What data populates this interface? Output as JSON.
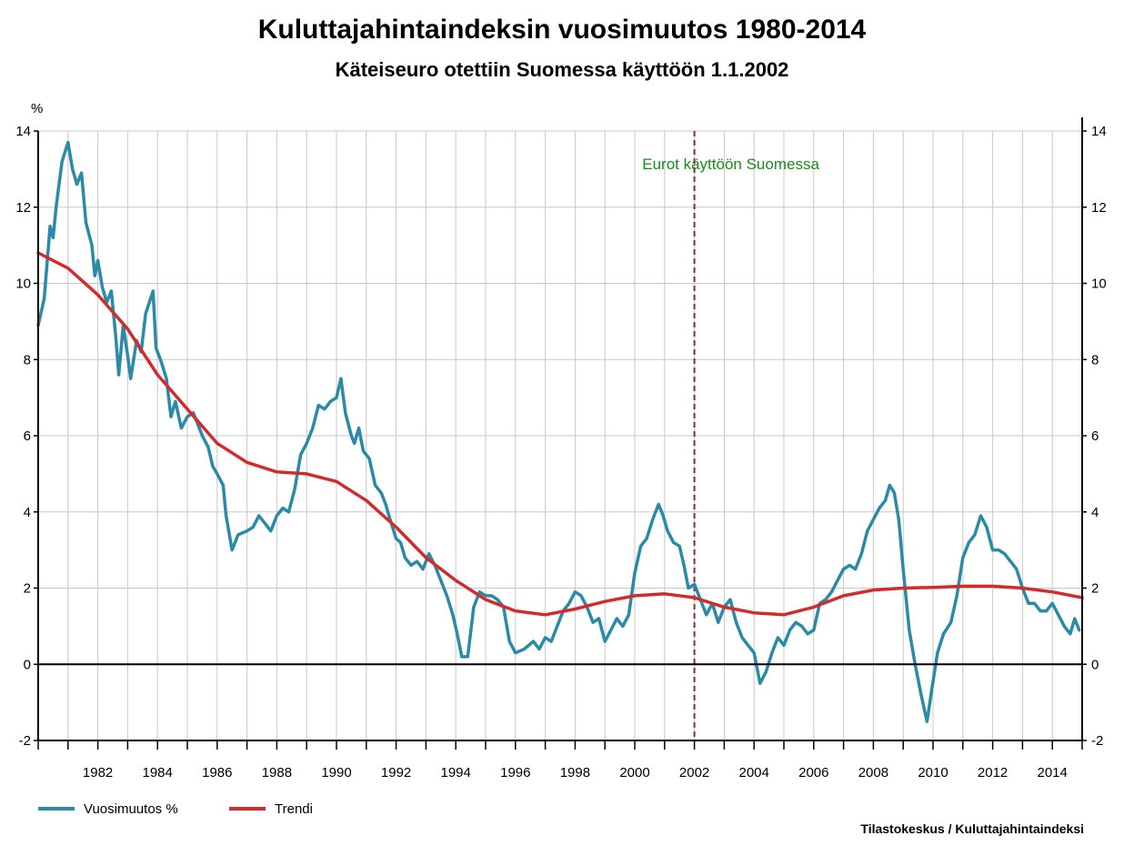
{
  "chart_data": {
    "type": "line",
    "title": "Kuluttajahintaindeksin vuosimuutos 1980-2014",
    "subtitle": "Käteiseuro otettiin Suomessa käyttöön 1.1.2002",
    "ylabel": "%",
    "xlabel": "",
    "xlim": [
      1980,
      2015
    ],
    "ylim": [
      -2,
      14
    ],
    "yticks": [
      -2,
      0,
      2,
      4,
      6,
      8,
      10,
      12,
      14
    ],
    "ytick_labels": [
      "-2",
      "0",
      "2",
      "4",
      "6",
      "8",
      "10",
      "12",
      "14"
    ],
    "xtick_labels": [
      {
        "x": 1982,
        "label": "1982"
      },
      {
        "x": 1984,
        "label": "1984"
      },
      {
        "x": 1986,
        "label": "1986"
      },
      {
        "x": 1988,
        "label": "1988"
      },
      {
        "x": 1990,
        "label": "1990"
      },
      {
        "x": 1992,
        "label": "1992"
      },
      {
        "x": 1994,
        "label": "1994"
      },
      {
        "x": 1996,
        "label": "1996"
      },
      {
        "x": 1998,
        "label": "1998"
      },
      {
        "x": 2000,
        "label": "2000"
      },
      {
        "x": 2002,
        "label": "2002"
      },
      {
        "x": 2004,
        "label": "2004"
      },
      {
        "x": 2006,
        "label": "2006"
      },
      {
        "x": 2008,
        "label": "2008"
      },
      {
        "x": 2010,
        "label": "2010"
      },
      {
        "x": 2012,
        "label": "2012"
      },
      {
        "x": 2014,
        "label": "2014"
      }
    ],
    "grid": true,
    "legend_position": "bottom-left",
    "annotation": {
      "x": 2002,
      "text": "Eurot käyttöön Suomessa",
      "color": "#1a8a1a",
      "line_color": "#8b2a3a"
    },
    "source": "Tilastokeskus / Kuluttajahintaindeksi",
    "series": [
      {
        "name": "Vuosimuutos %",
        "color": "#2b8aa6",
        "points": [
          [
            1980.0,
            8.9
          ],
          [
            1980.2,
            9.6
          ],
          [
            1980.4,
            11.5
          ],
          [
            1980.5,
            11.2
          ],
          [
            1980.6,
            12.0
          ],
          [
            1980.8,
            13.2
          ],
          [
            1981.0,
            13.7
          ],
          [
            1981.15,
            13.0
          ],
          [
            1981.3,
            12.6
          ],
          [
            1981.45,
            12.9
          ],
          [
            1981.6,
            11.6
          ],
          [
            1981.8,
            11.0
          ],
          [
            1981.9,
            10.2
          ],
          [
            1982.0,
            10.6
          ],
          [
            1982.15,
            9.9
          ],
          [
            1982.3,
            9.5
          ],
          [
            1982.45,
            9.8
          ],
          [
            1982.6,
            8.6
          ],
          [
            1982.7,
            7.6
          ],
          [
            1982.85,
            8.9
          ],
          [
            1983.0,
            8.1
          ],
          [
            1983.1,
            7.5
          ],
          [
            1983.3,
            8.5
          ],
          [
            1983.45,
            8.2
          ],
          [
            1983.6,
            9.2
          ],
          [
            1983.85,
            9.8
          ],
          [
            1983.95,
            8.3
          ],
          [
            1984.1,
            8.0
          ],
          [
            1984.3,
            7.5
          ],
          [
            1984.45,
            6.5
          ],
          [
            1984.6,
            6.9
          ],
          [
            1984.8,
            6.2
          ],
          [
            1985.0,
            6.5
          ],
          [
            1985.2,
            6.6
          ],
          [
            1985.35,
            6.3
          ],
          [
            1985.5,
            6.0
          ],
          [
            1985.7,
            5.7
          ],
          [
            1985.85,
            5.2
          ],
          [
            1986.0,
            5.0
          ],
          [
            1986.2,
            4.7
          ],
          [
            1986.3,
            3.9
          ],
          [
            1986.5,
            3.0
          ],
          [
            1986.7,
            3.4
          ],
          [
            1987.0,
            3.5
          ],
          [
            1987.2,
            3.6
          ],
          [
            1987.4,
            3.9
          ],
          [
            1987.6,
            3.7
          ],
          [
            1987.8,
            3.5
          ],
          [
            1988.0,
            3.9
          ],
          [
            1988.2,
            4.1
          ],
          [
            1988.4,
            4.0
          ],
          [
            1988.6,
            4.6
          ],
          [
            1988.8,
            5.5
          ],
          [
            1989.0,
            5.8
          ],
          [
            1989.2,
            6.2
          ],
          [
            1989.4,
            6.8
          ],
          [
            1989.6,
            6.7
          ],
          [
            1989.8,
            6.9
          ],
          [
            1990.0,
            7.0
          ],
          [
            1990.15,
            7.5
          ],
          [
            1990.3,
            6.6
          ],
          [
            1990.5,
            6.0
          ],
          [
            1990.6,
            5.8
          ],
          [
            1990.75,
            6.2
          ],
          [
            1990.9,
            5.6
          ],
          [
            1991.1,
            5.4
          ],
          [
            1991.3,
            4.7
          ],
          [
            1991.5,
            4.5
          ],
          [
            1991.65,
            4.2
          ],
          [
            1991.8,
            3.8
          ],
          [
            1992.0,
            3.3
          ],
          [
            1992.15,
            3.2
          ],
          [
            1992.3,
            2.8
          ],
          [
            1992.5,
            2.6
          ],
          [
            1992.7,
            2.7
          ],
          [
            1992.9,
            2.5
          ],
          [
            1993.1,
            2.9
          ],
          [
            1993.3,
            2.6
          ],
          [
            1993.5,
            2.2
          ],
          [
            1993.7,
            1.8
          ],
          [
            1993.9,
            1.3
          ],
          [
            1994.05,
            0.8
          ],
          [
            1994.2,
            0.2
          ],
          [
            1994.4,
            0.2
          ],
          [
            1994.6,
            1.5
          ],
          [
            1994.8,
            1.9
          ],
          [
            1995.0,
            1.8
          ],
          [
            1995.2,
            1.8
          ],
          [
            1995.4,
            1.7
          ],
          [
            1995.6,
            1.5
          ],
          [
            1995.8,
            0.6
          ],
          [
            1996.0,
            0.3
          ],
          [
            1996.3,
            0.4
          ],
          [
            1996.6,
            0.6
          ],
          [
            1996.8,
            0.4
          ],
          [
            1997.0,
            0.7
          ],
          [
            1997.2,
            0.6
          ],
          [
            1997.4,
            1.0
          ],
          [
            1997.6,
            1.4
          ],
          [
            1997.8,
            1.6
          ],
          [
            1998.0,
            1.9
          ],
          [
            1998.2,
            1.8
          ],
          [
            1998.4,
            1.5
          ],
          [
            1998.6,
            1.1
          ],
          [
            1998.8,
            1.2
          ],
          [
            1999.0,
            0.6
          ],
          [
            1999.2,
            0.9
          ],
          [
            1999.4,
            1.2
          ],
          [
            1999.6,
            1.0
          ],
          [
            1999.8,
            1.3
          ],
          [
            2000.0,
            2.4
          ],
          [
            2000.2,
            3.1
          ],
          [
            2000.4,
            3.3
          ],
          [
            2000.6,
            3.8
          ],
          [
            2000.8,
            4.2
          ],
          [
            2000.95,
            3.9
          ],
          [
            2001.1,
            3.5
          ],
          [
            2001.3,
            3.2
          ],
          [
            2001.5,
            3.1
          ],
          [
            2001.65,
            2.6
          ],
          [
            2001.8,
            2.0
          ],
          [
            2002.0,
            2.1
          ],
          [
            2002.2,
            1.7
          ],
          [
            2002.4,
            1.3
          ],
          [
            2002.6,
            1.6
          ],
          [
            2002.8,
            1.1
          ],
          [
            2003.0,
            1.5
          ],
          [
            2003.2,
            1.7
          ],
          [
            2003.4,
            1.1
          ],
          [
            2003.6,
            0.7
          ],
          [
            2003.8,
            0.5
          ],
          [
            2004.0,
            0.3
          ],
          [
            2004.2,
            -0.5
          ],
          [
            2004.4,
            -0.2
          ],
          [
            2004.6,
            0.3
          ],
          [
            2004.8,
            0.7
          ],
          [
            2005.0,
            0.5
          ],
          [
            2005.2,
            0.9
          ],
          [
            2005.4,
            1.1
          ],
          [
            2005.6,
            1.0
          ],
          [
            2005.8,
            0.8
          ],
          [
            2006.0,
            0.9
          ],
          [
            2006.2,
            1.6
          ],
          [
            2006.4,
            1.7
          ],
          [
            2006.6,
            1.9
          ],
          [
            2006.8,
            2.2
          ],
          [
            2007.0,
            2.5
          ],
          [
            2007.2,
            2.6
          ],
          [
            2007.4,
            2.5
          ],
          [
            2007.6,
            2.9
          ],
          [
            2007.8,
            3.5
          ],
          [
            2008.0,
            3.8
          ],
          [
            2008.2,
            4.1
          ],
          [
            2008.4,
            4.3
          ],
          [
            2008.55,
            4.7
          ],
          [
            2008.7,
            4.5
          ],
          [
            2008.85,
            3.8
          ],
          [
            2009.0,
            2.5
          ],
          [
            2009.2,
            0.9
          ],
          [
            2009.4,
            0.0
          ],
          [
            2009.6,
            -0.8
          ],
          [
            2009.8,
            -1.5
          ],
          [
            2009.95,
            -0.7
          ],
          [
            2010.15,
            0.3
          ],
          [
            2010.35,
            0.8
          ],
          [
            2010.6,
            1.1
          ],
          [
            2010.8,
            1.8
          ],
          [
            2011.0,
            2.8
          ],
          [
            2011.2,
            3.2
          ],
          [
            2011.4,
            3.4
          ],
          [
            2011.6,
            3.9
          ],
          [
            2011.8,
            3.6
          ],
          [
            2012.0,
            3.0
          ],
          [
            2012.2,
            3.0
          ],
          [
            2012.4,
            2.9
          ],
          [
            2012.6,
            2.7
          ],
          [
            2012.8,
            2.5
          ],
          [
            2013.0,
            2.0
          ],
          [
            2013.2,
            1.6
          ],
          [
            2013.4,
            1.6
          ],
          [
            2013.6,
            1.4
          ],
          [
            2013.8,
            1.4
          ],
          [
            2014.0,
            1.6
          ],
          [
            2014.2,
            1.3
          ],
          [
            2014.4,
            1.0
          ],
          [
            2014.6,
            0.8
          ],
          [
            2014.75,
            1.2
          ],
          [
            2014.9,
            0.9
          ]
        ]
      },
      {
        "name": "Trendi",
        "color": "#d12b2b",
        "points": [
          [
            1980.0,
            10.8
          ],
          [
            1981.0,
            10.4
          ],
          [
            1982.0,
            9.7
          ],
          [
            1983.0,
            8.8
          ],
          [
            1984.0,
            7.6
          ],
          [
            1985.0,
            6.7
          ],
          [
            1986.0,
            5.8
          ],
          [
            1987.0,
            5.3
          ],
          [
            1988.0,
            5.05
          ],
          [
            1989.0,
            5.0
          ],
          [
            1990.0,
            4.8
          ],
          [
            1991.0,
            4.3
          ],
          [
            1992.0,
            3.6
          ],
          [
            1993.0,
            2.8
          ],
          [
            1994.0,
            2.2
          ],
          [
            1995.0,
            1.7
          ],
          [
            1996.0,
            1.4
          ],
          [
            1997.0,
            1.3
          ],
          [
            1998.0,
            1.45
          ],
          [
            1999.0,
            1.65
          ],
          [
            2000.0,
            1.8
          ],
          [
            2001.0,
            1.85
          ],
          [
            2002.0,
            1.75
          ],
          [
            2003.0,
            1.5
          ],
          [
            2004.0,
            1.35
          ],
          [
            2005.0,
            1.3
          ],
          [
            2006.0,
            1.5
          ],
          [
            2007.0,
            1.8
          ],
          [
            2008.0,
            1.95
          ],
          [
            2009.0,
            2.0
          ],
          [
            2010.0,
            2.02
          ],
          [
            2011.0,
            2.05
          ],
          [
            2012.0,
            2.05
          ],
          [
            2013.0,
            2.0
          ],
          [
            2014.0,
            1.9
          ],
          [
            2015.0,
            1.75
          ]
        ]
      }
    ]
  }
}
